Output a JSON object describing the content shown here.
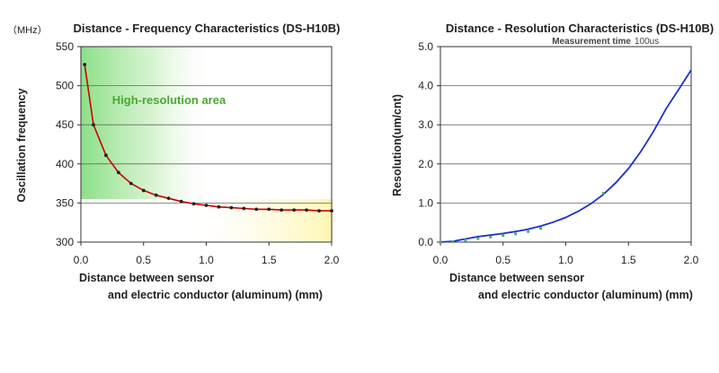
{
  "chart_data": [
    {
      "type": "line",
      "title": "Distance - Frequency Characteristics (DS-H10B)",
      "unit_label": "（MHz）",
      "xlabel_line1": "Distance between sensor",
      "xlabel_line2": "and electric conductor (aluminum) (mm)",
      "ylabel": "Oscillation frequency",
      "annotation": "High-resolution area",
      "xlim": [
        0,
        2.0
      ],
      "ylim": [
        300,
        550
      ],
      "xticks": [
        "0.0",
        "0.5",
        "1.0",
        "1.5",
        "2.0"
      ],
      "yticks": [
        "300",
        "350",
        "400",
        "450",
        "500",
        "550"
      ],
      "grid": "horizontal",
      "series": [
        {
          "color": "#cc0000",
          "x": [
            0.03,
            0.1,
            0.2,
            0.3,
            0.4,
            0.5,
            0.6,
            0.7,
            0.8,
            0.9,
            1.0,
            1.1,
            1.2,
            1.3,
            1.4,
            1.5,
            1.6,
            1.7,
            1.8,
            1.9,
            2.0
          ],
          "y": [
            527,
            450,
            411,
            389,
            375,
            366,
            360,
            356,
            352,
            349,
            347,
            345,
            344,
            343,
            342,
            342,
            341,
            341,
            341,
            340,
            340
          ]
        }
      ]
    },
    {
      "type": "line",
      "title": "Distance - Resolution Characteristics (DS-H10B)",
      "subtitle_label": "Measurement time",
      "subtitle_value": "100us",
      "xlabel_line1": "Distance between sensor",
      "xlabel_line2": "and electric conductor (aluminum) (mm)",
      "ylabel": "Resolution(um/cnt)",
      "xlim": [
        0,
        2.0
      ],
      "ylim": [
        0,
        5.0
      ],
      "xticks": [
        "0.0",
        "0.5",
        "1.0",
        "1.5",
        "2.0"
      ],
      "yticks": [
        "0.0",
        "1.0",
        "2.0",
        "3.0",
        "4.0",
        "5.0"
      ],
      "grid": "horizontal",
      "series": [
        {
          "color": "#1a2fd0",
          "x": [
            0.0,
            0.1,
            0.2,
            0.3,
            0.4,
            0.5,
            0.6,
            0.7,
            0.8,
            0.9,
            1.0,
            1.1,
            1.2,
            1.3,
            1.4,
            1.5,
            1.6,
            1.7,
            1.8,
            1.9,
            2.0
          ],
          "y": [
            0.0,
            0.02,
            0.08,
            0.14,
            0.18,
            0.22,
            0.27,
            0.33,
            0.41,
            0.51,
            0.63,
            0.79,
            0.98,
            1.22,
            1.52,
            1.88,
            2.32,
            2.83,
            3.41,
            3.9,
            4.4
          ]
        },
        {
          "color": "#55aa66",
          "x": [
            0.0,
            0.1,
            0.2,
            0.3,
            0.4,
            0.5,
            0.6,
            0.7,
            0.8,
            1.3
          ],
          "y": [
            0.0,
            0.01,
            0.05,
            0.09,
            0.13,
            0.17,
            0.21,
            0.27,
            0.35,
            1.25
          ]
        }
      ]
    }
  ]
}
